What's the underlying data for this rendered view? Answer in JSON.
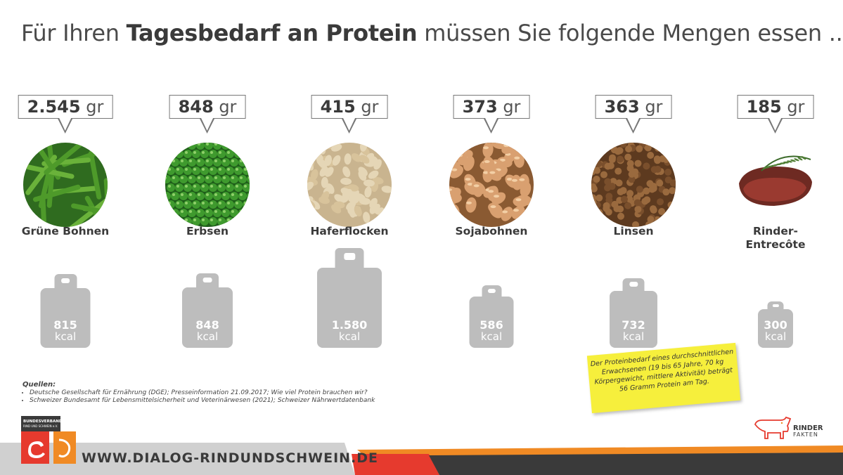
{
  "title": {
    "part1": "Für Ihren ",
    "part2": "Tagesbedarf an Protein",
    "part3": " müssen Sie folgende Mengen essen ..."
  },
  "unit_gr": "gr",
  "unit_kcal": "kcal",
  "foods": [
    {
      "amount": "2.545",
      "name": "Grüne Bohnen",
      "kcal": "815",
      "kcal_value": 815,
      "icon": "green-beans-photo"
    },
    {
      "amount": "848",
      "name": "Erbsen",
      "kcal": "848",
      "kcal_value": 848,
      "icon": "peas-photo"
    },
    {
      "amount": "415",
      "name": "Haferflocken",
      "kcal": "1.580",
      "kcal_value": 1580,
      "icon": "oat-flakes-photo"
    },
    {
      "amount": "373",
      "name": "Sojabohnen",
      "kcal": "586",
      "kcal_value": 586,
      "icon": "soybeans-photo"
    },
    {
      "amount": "363",
      "name": "Linsen",
      "kcal": "732",
      "kcal_value": 732,
      "icon": "lentils-photo"
    },
    {
      "amount": "185",
      "name": "Rinder-\nEntrecôte",
      "kcal": "300",
      "kcal_value": 300,
      "icon": "beef-steak-photo"
    }
  ],
  "sources": {
    "heading": "Quellen:",
    "items": [
      "Deutsche Gesellschaft für Ernährung (DGE); Presseinformation 21.09.2017; Wie viel Protein brauchen wir?",
      "Schweizer Bundesamt für Lebensmittelsicherheit und Veterinärwesen (2021); Schweizer Nährwertdatenbank"
    ]
  },
  "note": "Der Proteinbedarf eines durchschnittlichen Erwachsenen (19 bis 65 Jahre, 70 kg Körpergewicht, mittlere Aktivität) beträgt 56 Gramm Protein am Tag.",
  "footer": {
    "url": "WWW.DIALOG-RINDUNDSCHWEIN.DE",
    "logo_text": "BUNDESVERBAND RIND UND SCHWEIN e.V.",
    "brand_line1": "RINDER",
    "brand_line2": "FAKTEN"
  },
  "colors": {
    "weight_gray": "#bdbdbd",
    "orange": "#f08a24",
    "red": "#e63a2e",
    "dark": "#3a3a3a",
    "note_yellow": "#f6ef3c"
  }
}
